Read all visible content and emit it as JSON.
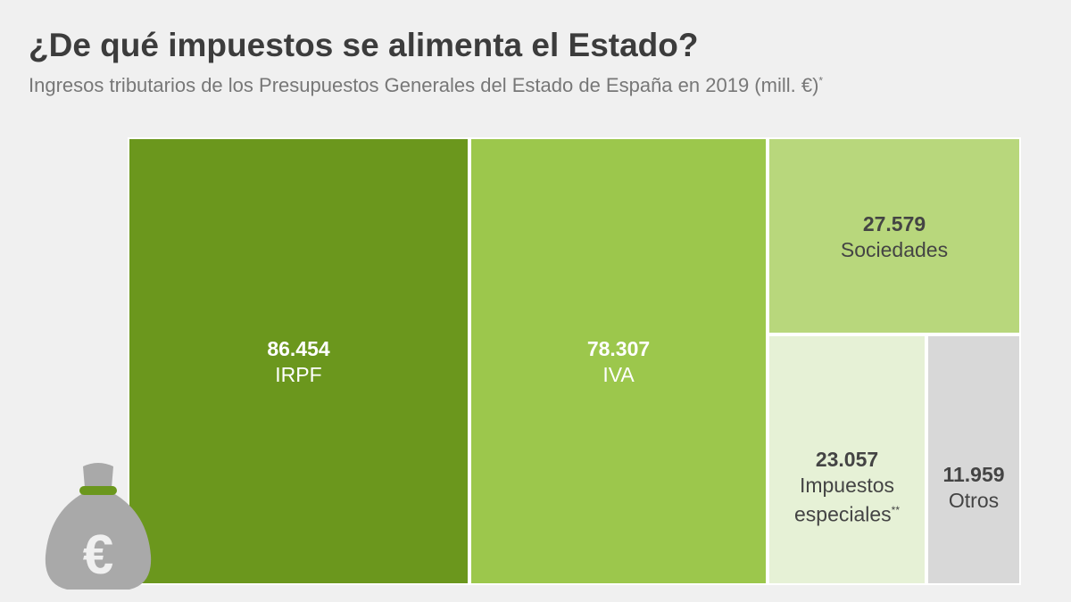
{
  "header": {
    "title": "¿De qué impuestos se alimenta el Estado?",
    "subtitle": "Ingresos tributarios de los Presupuestos Generales del Estado de España en 2019 (mill. €)",
    "subtitle_mark": "*"
  },
  "chart_data": {
    "type": "treemap",
    "title": "¿De qué impuestos se alimenta el Estado?",
    "subtitle": "Ingresos tributarios de los Presupuestos Generales del Estado de España en 2019 (mill. €)",
    "unit": "mill. €",
    "items": [
      {
        "label": "IRPF",
        "value_text": "86.454",
        "value": 86454,
        "color": "#6b971d"
      },
      {
        "label": "IVA",
        "value_text": "78.307",
        "value": 78307,
        "color": "#9cc74c"
      },
      {
        "label": "Sociedades",
        "value_text": "27.579",
        "value": 27579,
        "color": "#b8d77c"
      },
      {
        "label_line1": "Impuestos",
        "label_line2": "especiales",
        "label_mark": "**",
        "value_text": "23.057",
        "value": 23057,
        "color": "#e6f1d6"
      },
      {
        "label": "Otros",
        "value_text": "11.959",
        "value": 11959,
        "color": "#d8d8d8"
      }
    ]
  },
  "icon": {
    "name": "money-bag-euro-icon",
    "glyph": "€",
    "color": "#a9a9a9",
    "tie_color": "#6b971d"
  }
}
